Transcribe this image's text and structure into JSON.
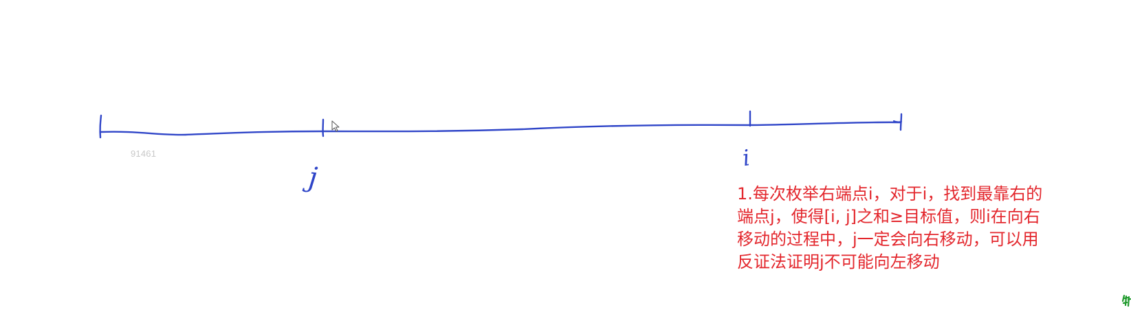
{
  "labels": {
    "left_pointer": "j",
    "right_pointer": "i"
  },
  "watermark": "91461",
  "note": {
    "lines": [
      "1.每次枚举右端点i，对于i，找到最靠右的",
      "端点j，使得[i, j]之和≥目标值，则i在向右",
      "移动的过程中，j一定会向右移动，可以用",
      "反证法证明j不可能向左移动"
    ]
  },
  "colors": {
    "ink_blue": "#2f45c8",
    "note_red": "#e3262c",
    "watermark_gray": "#c8c8c8",
    "corner_green": "#1f9a2c"
  },
  "icons": {
    "cursor": "mouse-pointer-icon"
  }
}
